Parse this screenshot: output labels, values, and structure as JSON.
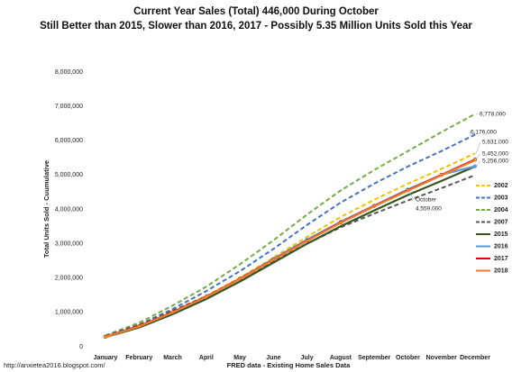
{
  "chart_data": {
    "type": "line",
    "title": "Current Year Sales (Total) 446,000 During October",
    "subtitle": "Still Better than 2015, Slower than 2016, 2017 - Possibly 5.35 Million Units Sold this Year",
    "y_label": "Total Units Sold - Cuumulative",
    "x_label": "FRED data - Existing Home Sales Data",
    "source": "http://anxietea2016.blogspot.com/",
    "categories": [
      "January",
      "February",
      "March",
      "April",
      "May",
      "June",
      "July",
      "August",
      "September",
      "October",
      "November",
      "December"
    ],
    "ylim": [
      0,
      8000000
    ],
    "yticks": [
      {
        "value": 0,
        "label": "0"
      },
      {
        "value": 1000000,
        "label": "1,000,000"
      },
      {
        "value": 2000000,
        "label": "2,000,000"
      },
      {
        "value": 3000000,
        "label": "3,000,000"
      },
      {
        "value": 4000000,
        "label": "4,000,000"
      },
      {
        "value": 5000000,
        "label": "5,000,000"
      },
      {
        "value": 6000000,
        "label": "6,000,000"
      },
      {
        "value": 7000000,
        "label": "7,000,000"
      },
      {
        "value": 8000000,
        "label": "8,000,000"
      }
    ],
    "series": [
      {
        "name": "2002",
        "color": "#f2c200",
        "dash": true,
        "values": [
          290000,
          600000,
          1030000,
          1480000,
          2010000,
          2600000,
          3200000,
          3780000,
          4280000,
          4750000,
          5180000,
          5631000
        ]
      },
      {
        "name": "2003",
        "color": "#4472c4",
        "dash": true,
        "values": [
          300000,
          640000,
          1100000,
          1620000,
          2200000,
          2850000,
          3550000,
          4200000,
          4750000,
          5250000,
          5700000,
          6176000
        ]
      },
      {
        "name": "2004",
        "color": "#70ad47",
        "dash": true,
        "values": [
          330000,
          700000,
          1200000,
          1750000,
          2400000,
          3100000,
          3850000,
          4550000,
          5150000,
          5700000,
          6250000,
          6778000
        ]
      },
      {
        "name": "2007",
        "color": "#595959",
        "dash": true,
        "values": [
          320000,
          640000,
          1050000,
          1470000,
          1970000,
          2490000,
          3000000,
          3480000,
          3880000,
          4260000,
          4620000,
          5000000
        ]
      },
      {
        "name": "2015",
        "color": "#375623",
        "dash": false,
        "values": [
          280000,
          560000,
          950000,
          1390000,
          1900000,
          2450000,
          3000000,
          3510000,
          3970000,
          4420000,
          4830000,
          5250000
        ]
      },
      {
        "name": "2016",
        "color": "#5b9bd5",
        "dash": false,
        "marker": true,
        "values": [
          300000,
          600000,
          1000000,
          1450000,
          1980000,
          2560000,
          3120000,
          3640000,
          4110000,
          4580000,
          5010000,
          5256000
        ]
      },
      {
        "name": "2017",
        "color": "#e00000",
        "dash": false,
        "marker": true,
        "values": [
          290000,
          600000,
          1010000,
          1460000,
          1980000,
          2540000,
          3090000,
          3620000,
          4100000,
          4559000,
          5005000,
          5452000
        ]
      },
      {
        "name": "2018",
        "color": "#ed7d31",
        "dash": false,
        "values": [
          285000,
          590000,
          1000000,
          1450000,
          1970000,
          2530000,
          3080000,
          3610000,
          4090000,
          4545000,
          4990000,
          5430000
        ]
      }
    ],
    "annotations": [
      {
        "text": "6,778,000",
        "series": 2,
        "index": 11,
        "color": "#333"
      },
      {
        "text": "6,176,000",
        "series": 1,
        "index": 11,
        "color": "#111"
      },
      {
        "text": "5,631,000",
        "series": 0,
        "index": 11,
        "color": "#111"
      },
      {
        "text": "5,452,000",
        "series": 6,
        "index": 11,
        "color": "#555"
      },
      {
        "text": "5,256,000",
        "series": 5,
        "index": 11,
        "color": "#2e75b6"
      },
      {
        "text": "October",
        "series": 6,
        "index": 9,
        "color": "#555"
      },
      {
        "text": "4,559,000",
        "series": 6,
        "index": 9,
        "color": "#555"
      }
    ],
    "legend": "right"
  }
}
